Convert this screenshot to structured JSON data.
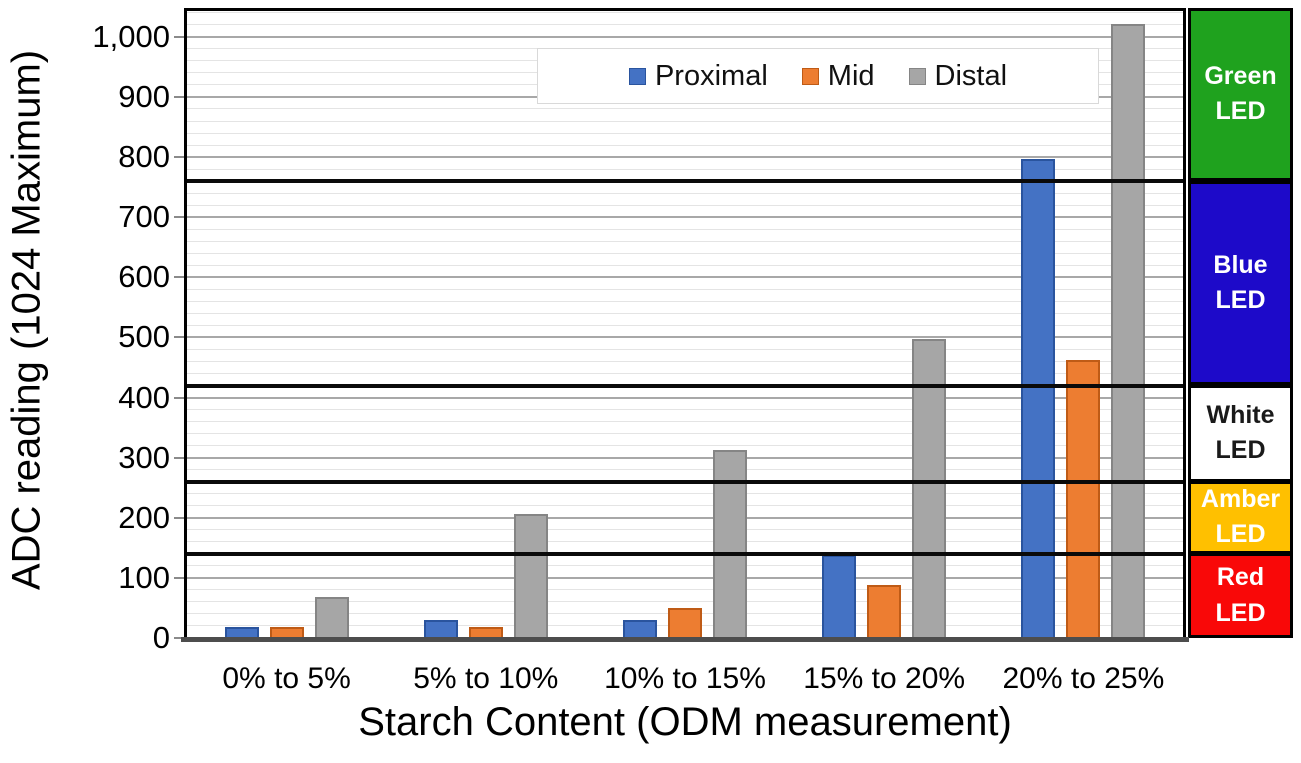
{
  "chart": {
    "y_axis_title": "ADC reading (1024 Maximum)",
    "x_axis_title": "Starch Content (ODM measurement)"
  },
  "chart_data": {
    "type": "bar",
    "title": "",
    "xlabel": "Starch Content (ODM measurement)",
    "ylabel": "ADC reading (1024 Maximum)",
    "categories": [
      "0% to 5%",
      "5% to 10%",
      "10% to 15%",
      "15% to 20%",
      "20% to 25%"
    ],
    "series": [
      {
        "name": "Proximal",
        "color": "#4472C4",
        "border_color": "#2A549E",
        "values": [
          18,
          30,
          30,
          138,
          797
        ]
      },
      {
        "name": "Mid",
        "color": "#ED7D31",
        "border_color": "#BF5B16",
        "values": [
          18,
          18,
          50,
          88,
          462
        ]
      },
      {
        "name": "Distal",
        "color": "#A6A6A6",
        "border_color": "#858585",
        "values": [
          68,
          207,
          313,
          498,
          1022
        ]
      }
    ],
    "ylim": [
      0,
      1048
    ],
    "y_major_unit": 100,
    "y_minor_unit": 20,
    "y_tick_labels": [
      "0",
      "100",
      "200",
      "300",
      "400",
      "500",
      "600",
      "700",
      "800",
      "900",
      "1,000"
    ],
    "grid": "on",
    "legend_position": "top-center",
    "threshold_lines": [
      140,
      260,
      420,
      760
    ],
    "led_bands": [
      {
        "label": "Green LED",
        "range": [
          760,
          1048
        ],
        "color": "#1FA21E",
        "text_color": "#FFFFFF"
      },
      {
        "label": "Blue LED",
        "range": [
          420,
          760
        ],
        "color": "#1D0AC9",
        "text_color": "#FFFFFF"
      },
      {
        "label": "White LED",
        "range": [
          260,
          420
        ],
        "color": "#FFFFFF",
        "text_color": "#1A1A1A"
      },
      {
        "label": "Amber LED",
        "range": [
          140,
          260
        ],
        "color": "#FFC000",
        "text_color": "#FFFFFF"
      },
      {
        "label": "Red LED",
        "range": [
          0,
          140
        ],
        "color": "#F90808",
        "text_color": "#FFFFFF"
      }
    ]
  }
}
